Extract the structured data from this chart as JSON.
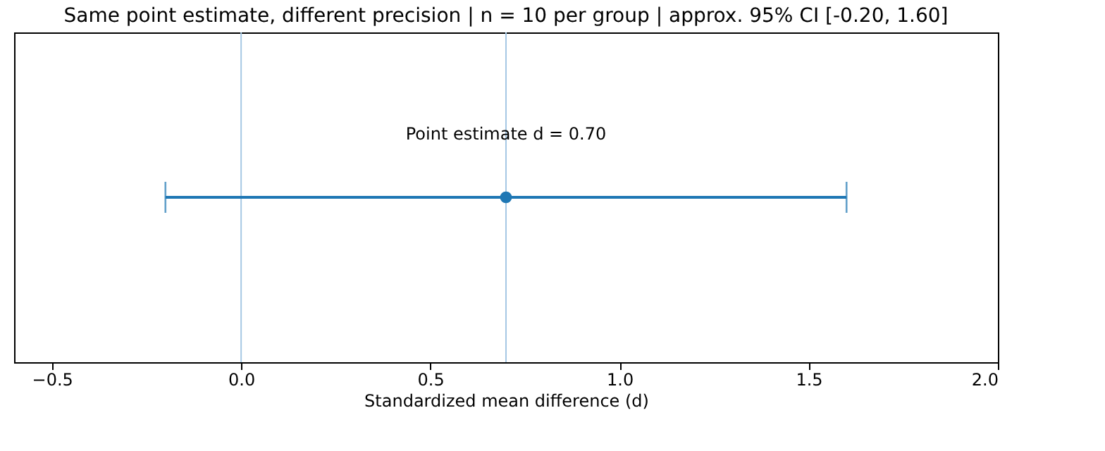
{
  "chart_data": {
    "type": "scatter",
    "orientation": "horizontal",
    "title": "Same point estimate, different precision  |  n = 10 per group  |  approx. 95% CI [-0.20, 1.60]",
    "xlabel": "Standardized mean difference (d)",
    "categories": [
      null
    ],
    "series": [
      {
        "color": "#1f77b4",
        "values": [
          0.7
        ],
        "errors": [
          0.9
        ]
      }
    ],
    "xlim": [
      -0.6,
      2.0
    ],
    "xticks": [
      {
        "value": -0.5,
        "label": "−0.5"
      },
      {
        "value": 0,
        "label": "0.0"
      },
      0.5,
      {
        "value": 1,
        "label": "1.0"
      },
      1.5,
      {
        "value": 2,
        "label": "2.0"
      }
    ],
    "ref_lines": [
      {
        "axis": "x",
        "value": 0,
        "color": "#a6c8e4"
      },
      {
        "axis": "x",
        "value": 0.7,
        "color": "#a6c8e4"
      }
    ],
    "annotations": [
      {
        "text": "Point estimate d = 0.70",
        "x": 0.7
      }
    ],
    "marker": "circle",
    "grid": false,
    "tick_labels": "x"
  }
}
